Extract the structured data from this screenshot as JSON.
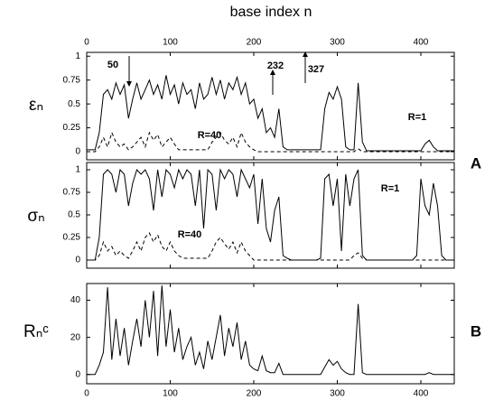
{
  "panel_labels": [
    "A",
    "B"
  ],
  "chart_data": [
    {
      "type": "line",
      "xlabel": "base index n",
      "ylabel": "εₙ",
      "xlim": [
        0,
        440
      ],
      "ylim": [
        -0.085,
        1.04
      ],
      "xticks": [
        0,
        100,
        200,
        300,
        400
      ],
      "yticks": [
        0,
        0.25,
        0.5,
        0.75,
        1
      ],
      "annotations": [
        "50",
        "232",
        "327"
      ],
      "x": [
        0,
        5,
        10,
        15,
        20,
        25,
        30,
        35,
        40,
        45,
        50,
        55,
        60,
        65,
        70,
        75,
        80,
        85,
        90,
        95,
        100,
        105,
        110,
        115,
        120,
        125,
        130,
        135,
        140,
        145,
        150,
        155,
        160,
        165,
        170,
        175,
        180,
        185,
        190,
        195,
        200,
        205,
        210,
        215,
        220,
        225,
        230,
        235,
        240,
        245,
        250,
        255,
        260,
        265,
        270,
        275,
        280,
        285,
        290,
        295,
        300,
        305,
        310,
        315,
        320,
        325,
        330,
        335,
        340,
        345,
        350,
        355,
        360,
        365,
        370,
        375,
        380,
        385,
        390,
        395,
        400,
        405,
        410,
        415,
        420,
        425,
        430,
        435,
        440
      ],
      "series": [
        {
          "name": "R=1",
          "color": "#000",
          "dash": false,
          "values": [
            0.02,
            0.02,
            0.02,
            0.2,
            0.6,
            0.65,
            0.55,
            0.72,
            0.6,
            0.7,
            0.35,
            0.55,
            0.72,
            0.55,
            0.65,
            0.75,
            0.6,
            0.7,
            0.55,
            0.8,
            0.6,
            0.7,
            0.5,
            0.72,
            0.6,
            0.65,
            0.45,
            0.72,
            0.55,
            0.6,
            0.78,
            0.6,
            0.75,
            0.55,
            0.72,
            0.65,
            0.78,
            0.6,
            0.72,
            0.5,
            0.55,
            0.35,
            0.45,
            0.2,
            0.25,
            0.15,
            0.45,
            0.05,
            0.02,
            0.02,
            0.02,
            0.02,
            0.02,
            0.02,
            0.02,
            0.02,
            0.02,
            0.45,
            0.62,
            0.55,
            0.68,
            0.55,
            0.05,
            0.02,
            0.02,
            0.72,
            0.1,
            0.01,
            0.01,
            0.01,
            0.01,
            0.01,
            0.01,
            0.01,
            0.01,
            0.01,
            0.01,
            0.01,
            0.01,
            0.01,
            0.01,
            0.08,
            0.12,
            0.05,
            0.01,
            0.01,
            0.01,
            0.01,
            0.01
          ]
        },
        {
          "name": "R=40",
          "color": "#000",
          "dash": true,
          "values": [
            0,
            0,
            0,
            0.05,
            0.15,
            0.05,
            0.2,
            0.1,
            0.05,
            0.08,
            0.02,
            0.05,
            0.1,
            0.15,
            0.05,
            0.2,
            0.12,
            0.18,
            0.05,
            0.1,
            0.15,
            0.08,
            0.02,
            0.02,
            0.02,
            0.02,
            0.02,
            0.02,
            0.02,
            0.02,
            0.1,
            0.15,
            0.2,
            0.12,
            0.08,
            0.15,
            0.05,
            0.2,
            0.1,
            0.05,
            0.02,
            0,
            0,
            0,
            0,
            0,
            0,
            0,
            0,
            0,
            0,
            0,
            0,
            0,
            0,
            0,
            0,
            0,
            0,
            0,
            0,
            0,
            0,
            0,
            0,
            0.03,
            0,
            0,
            0,
            0,
            0,
            0,
            0,
            0,
            0,
            0,
            0,
            0,
            0,
            0,
            0,
            0,
            0,
            0,
            0,
            0,
            0,
            0,
            0
          ]
        }
      ]
    },
    {
      "type": "line",
      "ylabel": "σₙ",
      "xlim": [
        0,
        440
      ],
      "ylim": [
        -0.09,
        1.08
      ],
      "xticks": [
        0,
        100,
        200,
        300,
        400
      ],
      "yticks": [
        0,
        0.25,
        0.5,
        0.75,
        1
      ],
      "x": [
        0,
        5,
        10,
        15,
        20,
        25,
        30,
        35,
        40,
        45,
        50,
        55,
        60,
        65,
        70,
        75,
        80,
        85,
        90,
        95,
        100,
        105,
        110,
        115,
        120,
        125,
        130,
        135,
        140,
        145,
        150,
        155,
        160,
        165,
        170,
        175,
        180,
        185,
        190,
        195,
        200,
        205,
        210,
        215,
        220,
        225,
        230,
        235,
        240,
        245,
        250,
        255,
        260,
        265,
        270,
        275,
        280,
        285,
        290,
        295,
        300,
        305,
        310,
        315,
        320,
        325,
        330,
        335,
        340,
        345,
        350,
        355,
        360,
        365,
        370,
        375,
        380,
        385,
        390,
        395,
        400,
        405,
        410,
        415,
        420,
        425,
        430,
        435,
        440
      ],
      "series": [
        {
          "name": "R=1",
          "color": "#000",
          "dash": false,
          "values": [
            0,
            0,
            0,
            0.25,
            0.95,
            1,
            0.95,
            0.75,
            1,
            0.95,
            0.6,
            0.85,
            1,
            0.95,
            1,
            0.9,
            0.55,
            1,
            0.7,
            1,
            0.95,
            0.8,
            1,
            0.9,
            1,
            0.95,
            0.6,
            1,
            0.35,
            1,
            0.95,
            0.55,
            1,
            0.9,
            1,
            0.95,
            0.7,
            1,
            0.9,
            0.8,
            0.95,
            0.4,
            0.9,
            0.35,
            0.2,
            0.55,
            0.7,
            0.05,
            0.02,
            0,
            0,
            0,
            0,
            0,
            0,
            0,
            0.02,
            0.9,
            0.95,
            0.6,
            0.9,
            0.1,
            0.95,
            0.6,
            0.9,
            1,
            0.05,
            0,
            0,
            0,
            0,
            0,
            0,
            0,
            0,
            0,
            0,
            0,
            0,
            0.05,
            0.9,
            0.6,
            0.5,
            0.85,
            0.6,
            0.05,
            0,
            0,
            0
          ]
        },
        {
          "name": "R=40",
          "color": "#000",
          "dash": true,
          "values": [
            0,
            0,
            0,
            0.05,
            0.2,
            0.1,
            0.15,
            0.05,
            0.1,
            0.05,
            0.02,
            0.1,
            0.2,
            0.1,
            0.25,
            0.3,
            0.2,
            0.28,
            0.15,
            0.1,
            0.2,
            0.1,
            0.05,
            0.02,
            0.02,
            0.02,
            0.02,
            0.02,
            0.02,
            0.02,
            0.1,
            0.2,
            0.25,
            0.18,
            0.12,
            0.2,
            0.08,
            0.2,
            0.1,
            0.05,
            0,
            0,
            0,
            0,
            0,
            0,
            0,
            0,
            0,
            0,
            0,
            0,
            0,
            0,
            0,
            0,
            0,
            0,
            0,
            0,
            0,
            0,
            0,
            0,
            0.05,
            0.08,
            0.02,
            0,
            0,
            0,
            0,
            0,
            0,
            0,
            0,
            0,
            0,
            0,
            0,
            0,
            0,
            0,
            0,
            0,
            0,
            0,
            0,
            0,
            0
          ]
        }
      ]
    },
    {
      "type": "line",
      "ylabel": "Rₙᶜ",
      "xlim": [
        0,
        440
      ],
      "ylim": [
        -5,
        49
      ],
      "xticks": [
        0,
        100,
        200,
        300,
        400
      ],
      "yticks": [
        0,
        20,
        40
      ],
      "x": [
        0,
        5,
        10,
        15,
        20,
        25,
        30,
        35,
        40,
        45,
        50,
        55,
        60,
        65,
        70,
        75,
        80,
        85,
        90,
        95,
        100,
        105,
        110,
        115,
        120,
        125,
        130,
        135,
        140,
        145,
        150,
        155,
        160,
        165,
        170,
        175,
        180,
        185,
        190,
        195,
        200,
        205,
        210,
        215,
        220,
        225,
        230,
        235,
        240,
        245,
        250,
        255,
        260,
        265,
        270,
        275,
        280,
        285,
        290,
        295,
        300,
        305,
        310,
        315,
        320,
        325,
        330,
        335,
        340,
        345,
        350,
        355,
        360,
        365,
        370,
        375,
        380,
        385,
        390,
        395,
        400,
        405,
        410,
        415,
        420,
        425,
        430,
        435,
        440
      ],
      "series": [
        {
          "color": "#000",
          "dash": false,
          "values": [
            0,
            0,
            0,
            5,
            12,
            47,
            8,
            30,
            10,
            25,
            5,
            18,
            30,
            15,
            40,
            20,
            45,
            10,
            48,
            15,
            35,
            12,
            25,
            8,
            15,
            20,
            5,
            12,
            3,
            18,
            8,
            20,
            32,
            10,
            25,
            15,
            28,
            8,
            18,
            5,
            3,
            2,
            10,
            2,
            1,
            1,
            6,
            0,
            0,
            0,
            0,
            0,
            0,
            0,
            0,
            0,
            0,
            4,
            8,
            5,
            7,
            3,
            1,
            0,
            0,
            38,
            1,
            0,
            0,
            0,
            0,
            0,
            0,
            0,
            0,
            0,
            0,
            0,
            0,
            0,
            0,
            0,
            1,
            0,
            0,
            0,
            0,
            0,
            0
          ]
        }
      ]
    }
  ]
}
